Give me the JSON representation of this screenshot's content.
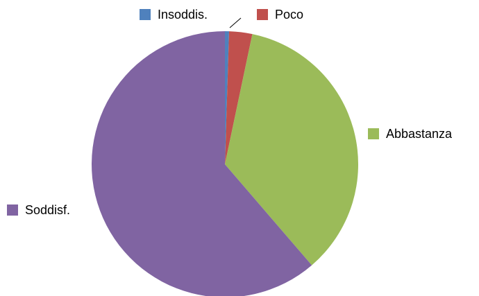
{
  "chart_data": {
    "type": "pie",
    "title": "",
    "legend": "none",
    "slices": [
      {
        "label": "Insoddis.",
        "value": 0.5,
        "color": "#4F81BD"
      },
      {
        "label": "Poco",
        "value": 2.8,
        "color": "#C0504D"
      },
      {
        "label": "Abbastanza",
        "value": 35.4,
        "color": "#9BBB59"
      },
      {
        "label": "Soddisf.",
        "value": 61.3,
        "color": "#8064A2"
      }
    ]
  }
}
